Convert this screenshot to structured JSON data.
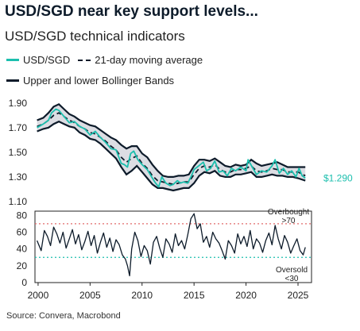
{
  "header": {
    "title": "USD/SGD near key support levels...",
    "subtitle": "USD/SGD technical indicators"
  },
  "legend": {
    "spot": "USD/SGD",
    "ma": "21-day moving average",
    "bands": "Upper and lower Bollinger Bands"
  },
  "source": "Source: Convera, Macrobond",
  "colors": {
    "spot": "#1cbfae",
    "dark": "#0d1b2a",
    "band_fill": "#dcdde3",
    "overbought": "#e26a6a",
    "oversold": "#1cbfae"
  },
  "chart_data": [
    {
      "type": "line",
      "title": "",
      "ylim": [
        1.1,
        1.95
      ],
      "y_ticks": [
        "1.90",
        "1.70",
        "1.50",
        "1.30",
        "1.10"
      ],
      "y_tick_values": [
        1.9,
        1.7,
        1.5,
        1.3,
        1.1
      ],
      "end_label": "$1.290",
      "series": [
        {
          "name": "USD/SGD",
          "style": "spot",
          "x": [
            1999.9,
            2000.5,
            2001.0,
            2001.3,
            2001.7,
            2002.0,
            2002.5,
            2003.0,
            2003.5,
            2004.0,
            2004.5,
            2005.0,
            2005.5,
            2006.0,
            2006.5,
            2007.0,
            2007.5,
            2008.0,
            2008.3,
            2008.6,
            2008.9,
            2009.2,
            2009.6,
            2010.0,
            2010.5,
            2011.0,
            2011.3,
            2011.6,
            2011.9,
            2012.3,
            2012.7,
            2013.0,
            2013.4,
            2013.7,
            2014.0,
            2014.4,
            2014.7,
            2015.0,
            2015.3,
            2015.6,
            2015.9,
            2016.2,
            2016.6,
            2017.0,
            2017.4,
            2017.8,
            2018.2,
            2018.6,
            2019.0,
            2019.5,
            2020.0,
            2020.2,
            2020.6,
            2021.0,
            2021.5,
            2022.0,
            2022.5,
            2022.8,
            2023.2,
            2023.6,
            2024.0,
            2024.4,
            2024.8,
            2025.1,
            2025.4,
            2025.7
          ],
          "values": [
            1.7,
            1.73,
            1.76,
            1.82,
            1.85,
            1.84,
            1.79,
            1.74,
            1.75,
            1.71,
            1.69,
            1.64,
            1.67,
            1.62,
            1.58,
            1.53,
            1.52,
            1.41,
            1.4,
            1.38,
            1.49,
            1.51,
            1.44,
            1.4,
            1.36,
            1.29,
            1.25,
            1.22,
            1.3,
            1.25,
            1.23,
            1.24,
            1.27,
            1.25,
            1.26,
            1.25,
            1.3,
            1.36,
            1.38,
            1.4,
            1.42,
            1.35,
            1.37,
            1.43,
            1.34,
            1.35,
            1.31,
            1.37,
            1.35,
            1.38,
            1.35,
            1.44,
            1.38,
            1.32,
            1.35,
            1.34,
            1.39,
            1.44,
            1.33,
            1.37,
            1.32,
            1.35,
            1.3,
            1.37,
            1.31,
            1.29
          ]
        },
        {
          "name": "21-day moving average",
          "style": "dashed",
          "x": [
            1999.9,
            2000.5,
            2001.0,
            2001.5,
            2002.0,
            2002.5,
            2003.0,
            2003.5,
            2004.0,
            2004.5,
            2005.0,
            2005.5,
            2006.0,
            2006.5,
            2007.0,
            2007.5,
            2008.0,
            2008.5,
            2009.0,
            2009.5,
            2010.0,
            2010.5,
            2011.0,
            2011.5,
            2012.0,
            2012.5,
            2013.0,
            2013.5,
            2014.0,
            2014.5,
            2015.0,
            2015.5,
            2016.0,
            2016.5,
            2017.0,
            2017.5,
            2018.0,
            2018.5,
            2019.0,
            2019.5,
            2020.0,
            2020.5,
            2021.0,
            2021.5,
            2022.0,
            2022.5,
            2023.0,
            2023.5,
            2024.0,
            2024.5,
            2025.0,
            2025.7
          ],
          "values": [
            1.71,
            1.73,
            1.76,
            1.8,
            1.82,
            1.79,
            1.76,
            1.74,
            1.71,
            1.69,
            1.66,
            1.65,
            1.62,
            1.59,
            1.55,
            1.52,
            1.46,
            1.42,
            1.45,
            1.47,
            1.41,
            1.37,
            1.31,
            1.27,
            1.26,
            1.25,
            1.24,
            1.25,
            1.26,
            1.26,
            1.32,
            1.37,
            1.39,
            1.38,
            1.4,
            1.36,
            1.34,
            1.34,
            1.36,
            1.36,
            1.37,
            1.39,
            1.35,
            1.34,
            1.35,
            1.37,
            1.36,
            1.36,
            1.34,
            1.34,
            1.34,
            1.31
          ]
        },
        {
          "name": "Upper Bollinger Band",
          "style": "band",
          "x": [
            1999.9,
            2000.5,
            2001.0,
            2001.5,
            2002.0,
            2002.5,
            2003.0,
            2003.5,
            2004.0,
            2004.5,
            2005.0,
            2005.5,
            2006.0,
            2006.5,
            2007.0,
            2007.5,
            2008.0,
            2008.5,
            2009.0,
            2009.5,
            2010.0,
            2010.5,
            2011.0,
            2011.5,
            2012.0,
            2012.5,
            2013.0,
            2013.5,
            2014.0,
            2014.5,
            2015.0,
            2015.5,
            2016.0,
            2016.5,
            2017.0,
            2017.5,
            2018.0,
            2018.5,
            2019.0,
            2019.5,
            2020.0,
            2020.5,
            2021.0,
            2021.5,
            2022.0,
            2022.5,
            2023.0,
            2023.5,
            2024.0,
            2024.5,
            2025.0,
            2025.7
          ],
          "values": [
            1.76,
            1.78,
            1.82,
            1.87,
            1.89,
            1.85,
            1.81,
            1.79,
            1.76,
            1.74,
            1.72,
            1.71,
            1.68,
            1.65,
            1.62,
            1.6,
            1.56,
            1.53,
            1.55,
            1.55,
            1.49,
            1.46,
            1.4,
            1.35,
            1.31,
            1.3,
            1.3,
            1.31,
            1.31,
            1.32,
            1.39,
            1.44,
            1.44,
            1.43,
            1.45,
            1.42,
            1.39,
            1.38,
            1.4,
            1.39,
            1.4,
            1.44,
            1.41,
            1.39,
            1.4,
            1.41,
            1.42,
            1.4,
            1.38,
            1.38,
            1.38,
            1.38
          ]
        },
        {
          "name": "Lower Bollinger Band",
          "style": "band",
          "x": [
            1999.9,
            2000.5,
            2001.0,
            2001.5,
            2002.0,
            2002.5,
            2003.0,
            2003.5,
            2004.0,
            2004.5,
            2005.0,
            2005.5,
            2006.0,
            2006.5,
            2007.0,
            2007.5,
            2008.0,
            2008.5,
            2009.0,
            2009.5,
            2010.0,
            2010.5,
            2011.0,
            2011.5,
            2012.0,
            2012.5,
            2013.0,
            2013.5,
            2014.0,
            2014.5,
            2015.0,
            2015.5,
            2016.0,
            2016.5,
            2017.0,
            2017.5,
            2018.0,
            2018.5,
            2019.0,
            2019.5,
            2020.0,
            2020.5,
            2021.0,
            2021.5,
            2022.0,
            2022.5,
            2023.0,
            2023.5,
            2024.0,
            2024.5,
            2025.0,
            2025.7
          ],
          "values": [
            1.67,
            1.69,
            1.7,
            1.73,
            1.75,
            1.73,
            1.71,
            1.7,
            1.66,
            1.64,
            1.61,
            1.6,
            1.57,
            1.53,
            1.49,
            1.45,
            1.38,
            1.32,
            1.35,
            1.39,
            1.34,
            1.29,
            1.24,
            1.21,
            1.21,
            1.2,
            1.19,
            1.2,
            1.21,
            1.21,
            1.25,
            1.31,
            1.34,
            1.33,
            1.35,
            1.31,
            1.3,
            1.3,
            1.32,
            1.32,
            1.33,
            1.34,
            1.3,
            1.3,
            1.31,
            1.32,
            1.31,
            1.31,
            1.3,
            1.3,
            1.29,
            1.27
          ]
        }
      ]
    },
    {
      "type": "line",
      "title": "",
      "ylim": [
        0,
        85
      ],
      "y_ticks": [
        "80",
        "60",
        "40",
        "20",
        "0"
      ],
      "y_tick_values": [
        80,
        60,
        40,
        20,
        0
      ],
      "x_ticks": [
        "2000",
        "2005",
        "2010",
        "2015",
        "2020",
        "2025"
      ],
      "x_tick_values": [
        2000,
        2005,
        2010,
        2015,
        2020,
        2025
      ],
      "xlim": [
        1999.7,
        2026.3
      ],
      "thresholds": [
        {
          "value": 70,
          "label": "Overbought >70",
          "style": "overbought"
        },
        {
          "value": 30,
          "label": "Oversold <30",
          "style": "oversold"
        }
      ],
      "series": [
        {
          "name": "",
          "style": "dark",
          "x": [
            1999.9,
            2000.3,
            2000.6,
            2000.9,
            2001.2,
            2001.5,
            2001.8,
            2002.1,
            2002.4,
            2002.7,
            2003.0,
            2003.3,
            2003.6,
            2003.9,
            2004.2,
            2004.5,
            2004.8,
            2005.1,
            2005.4,
            2005.7,
            2006.0,
            2006.3,
            2006.6,
            2006.9,
            2007.2,
            2007.5,
            2007.8,
            2008.1,
            2008.4,
            2008.6,
            2008.8,
            2009.0,
            2009.3,
            2009.6,
            2009.9,
            2010.2,
            2010.5,
            2010.8,
            2011.1,
            2011.4,
            2011.7,
            2012.0,
            2012.3,
            2012.6,
            2012.9,
            2013.2,
            2013.5,
            2013.8,
            2014.1,
            2014.4,
            2014.7,
            2015.0,
            2015.3,
            2015.6,
            2015.9,
            2016.2,
            2016.5,
            2016.8,
            2017.1,
            2017.4,
            2017.7,
            2018.0,
            2018.3,
            2018.6,
            2018.9,
            2019.2,
            2019.5,
            2019.8,
            2020.1,
            2020.4,
            2020.7,
            2021.0,
            2021.3,
            2021.6,
            2021.9,
            2022.2,
            2022.5,
            2022.8,
            2023.1,
            2023.4,
            2023.7,
            2024.0,
            2024.3,
            2024.6,
            2024.9,
            2025.2,
            2025.5,
            2025.7
          ],
          "values": [
            50,
            38,
            62,
            55,
            44,
            66,
            58,
            47,
            60,
            41,
            52,
            63,
            46,
            57,
            39,
            49,
            61,
            44,
            56,
            35,
            48,
            59,
            42,
            53,
            37,
            51,
            45,
            33,
            28,
            20,
            8,
            40,
            60,
            50,
            31,
            44,
            38,
            22,
            48,
            55,
            41,
            30,
            52,
            46,
            36,
            58,
            44,
            50,
            40,
            57,
            76,
            82,
            64,
            70,
            48,
            55,
            42,
            60,
            52,
            47,
            38,
            28,
            50,
            44,
            35,
            58,
            46,
            55,
            43,
            62,
            40,
            52,
            47,
            36,
            50,
            59,
            45,
            68,
            52,
            40,
            56,
            48,
            35,
            44,
            52,
            38,
            33,
            42
          ]
        }
      ]
    }
  ]
}
